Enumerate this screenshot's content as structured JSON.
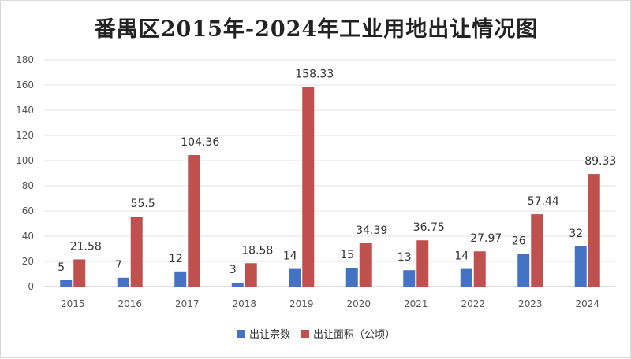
{
  "chart_data": {
    "type": "bar",
    "title": "番禺区2015年-2024年工业用地出让情况图",
    "categories": [
      "2015",
      "2016",
      "2017",
      "2018",
      "2019",
      "2020",
      "2021",
      "2022",
      "2023",
      "2024"
    ],
    "series": [
      {
        "name": "出让宗数",
        "color": "#4472c4",
        "values": [
          5,
          7,
          12,
          3,
          14,
          15,
          13,
          14,
          26,
          32
        ]
      },
      {
        "name": "出让面积（公顷）",
        "color": "#c0504d",
        "values": [
          21.58,
          55.5,
          104.36,
          18.58,
          158.33,
          34.39,
          36.75,
          27.97,
          57.44,
          89.33
        ]
      }
    ],
    "ylim": [
      0,
      180
    ],
    "yticks": [
      0,
      20,
      40,
      60,
      80,
      100,
      120,
      140,
      160,
      180
    ],
    "grid": true,
    "legend_position": "bottom"
  }
}
